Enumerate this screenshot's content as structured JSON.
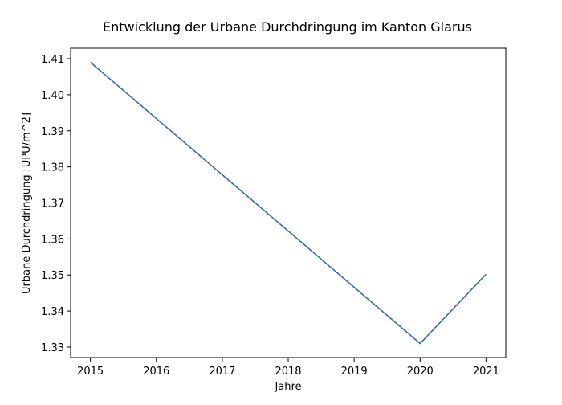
{
  "chart_data": {
    "type": "line",
    "title": "Entwicklung der Urbane Durchdringung im Kanton Glarus",
    "xlabel": "Jahre",
    "ylabel": "Urbane Durchdringung [UPU/m^2]",
    "x": [
      2015,
      2016,
      2017,
      2018,
      2019,
      2020,
      2021
    ],
    "series": [
      {
        "values": [
          1.409,
          1.3934,
          1.3778,
          1.3622,
          1.3466,
          1.331,
          1.3502
        ]
      }
    ],
    "xlim": [
      2014.7,
      2021.3
    ],
    "ylim": [
      1.3271,
      1.4129
    ],
    "x_ticks": [
      "2015",
      "2016",
      "2017",
      "2018",
      "2019",
      "2020",
      "2021"
    ],
    "y_ticks": [
      "1.33",
      "1.34",
      "1.35",
      "1.36",
      "1.37",
      "1.38",
      "1.39",
      "1.40",
      "1.41"
    ],
    "grid": false,
    "colors": {
      "line": "#3a6ab0",
      "axes": "#000000"
    }
  }
}
